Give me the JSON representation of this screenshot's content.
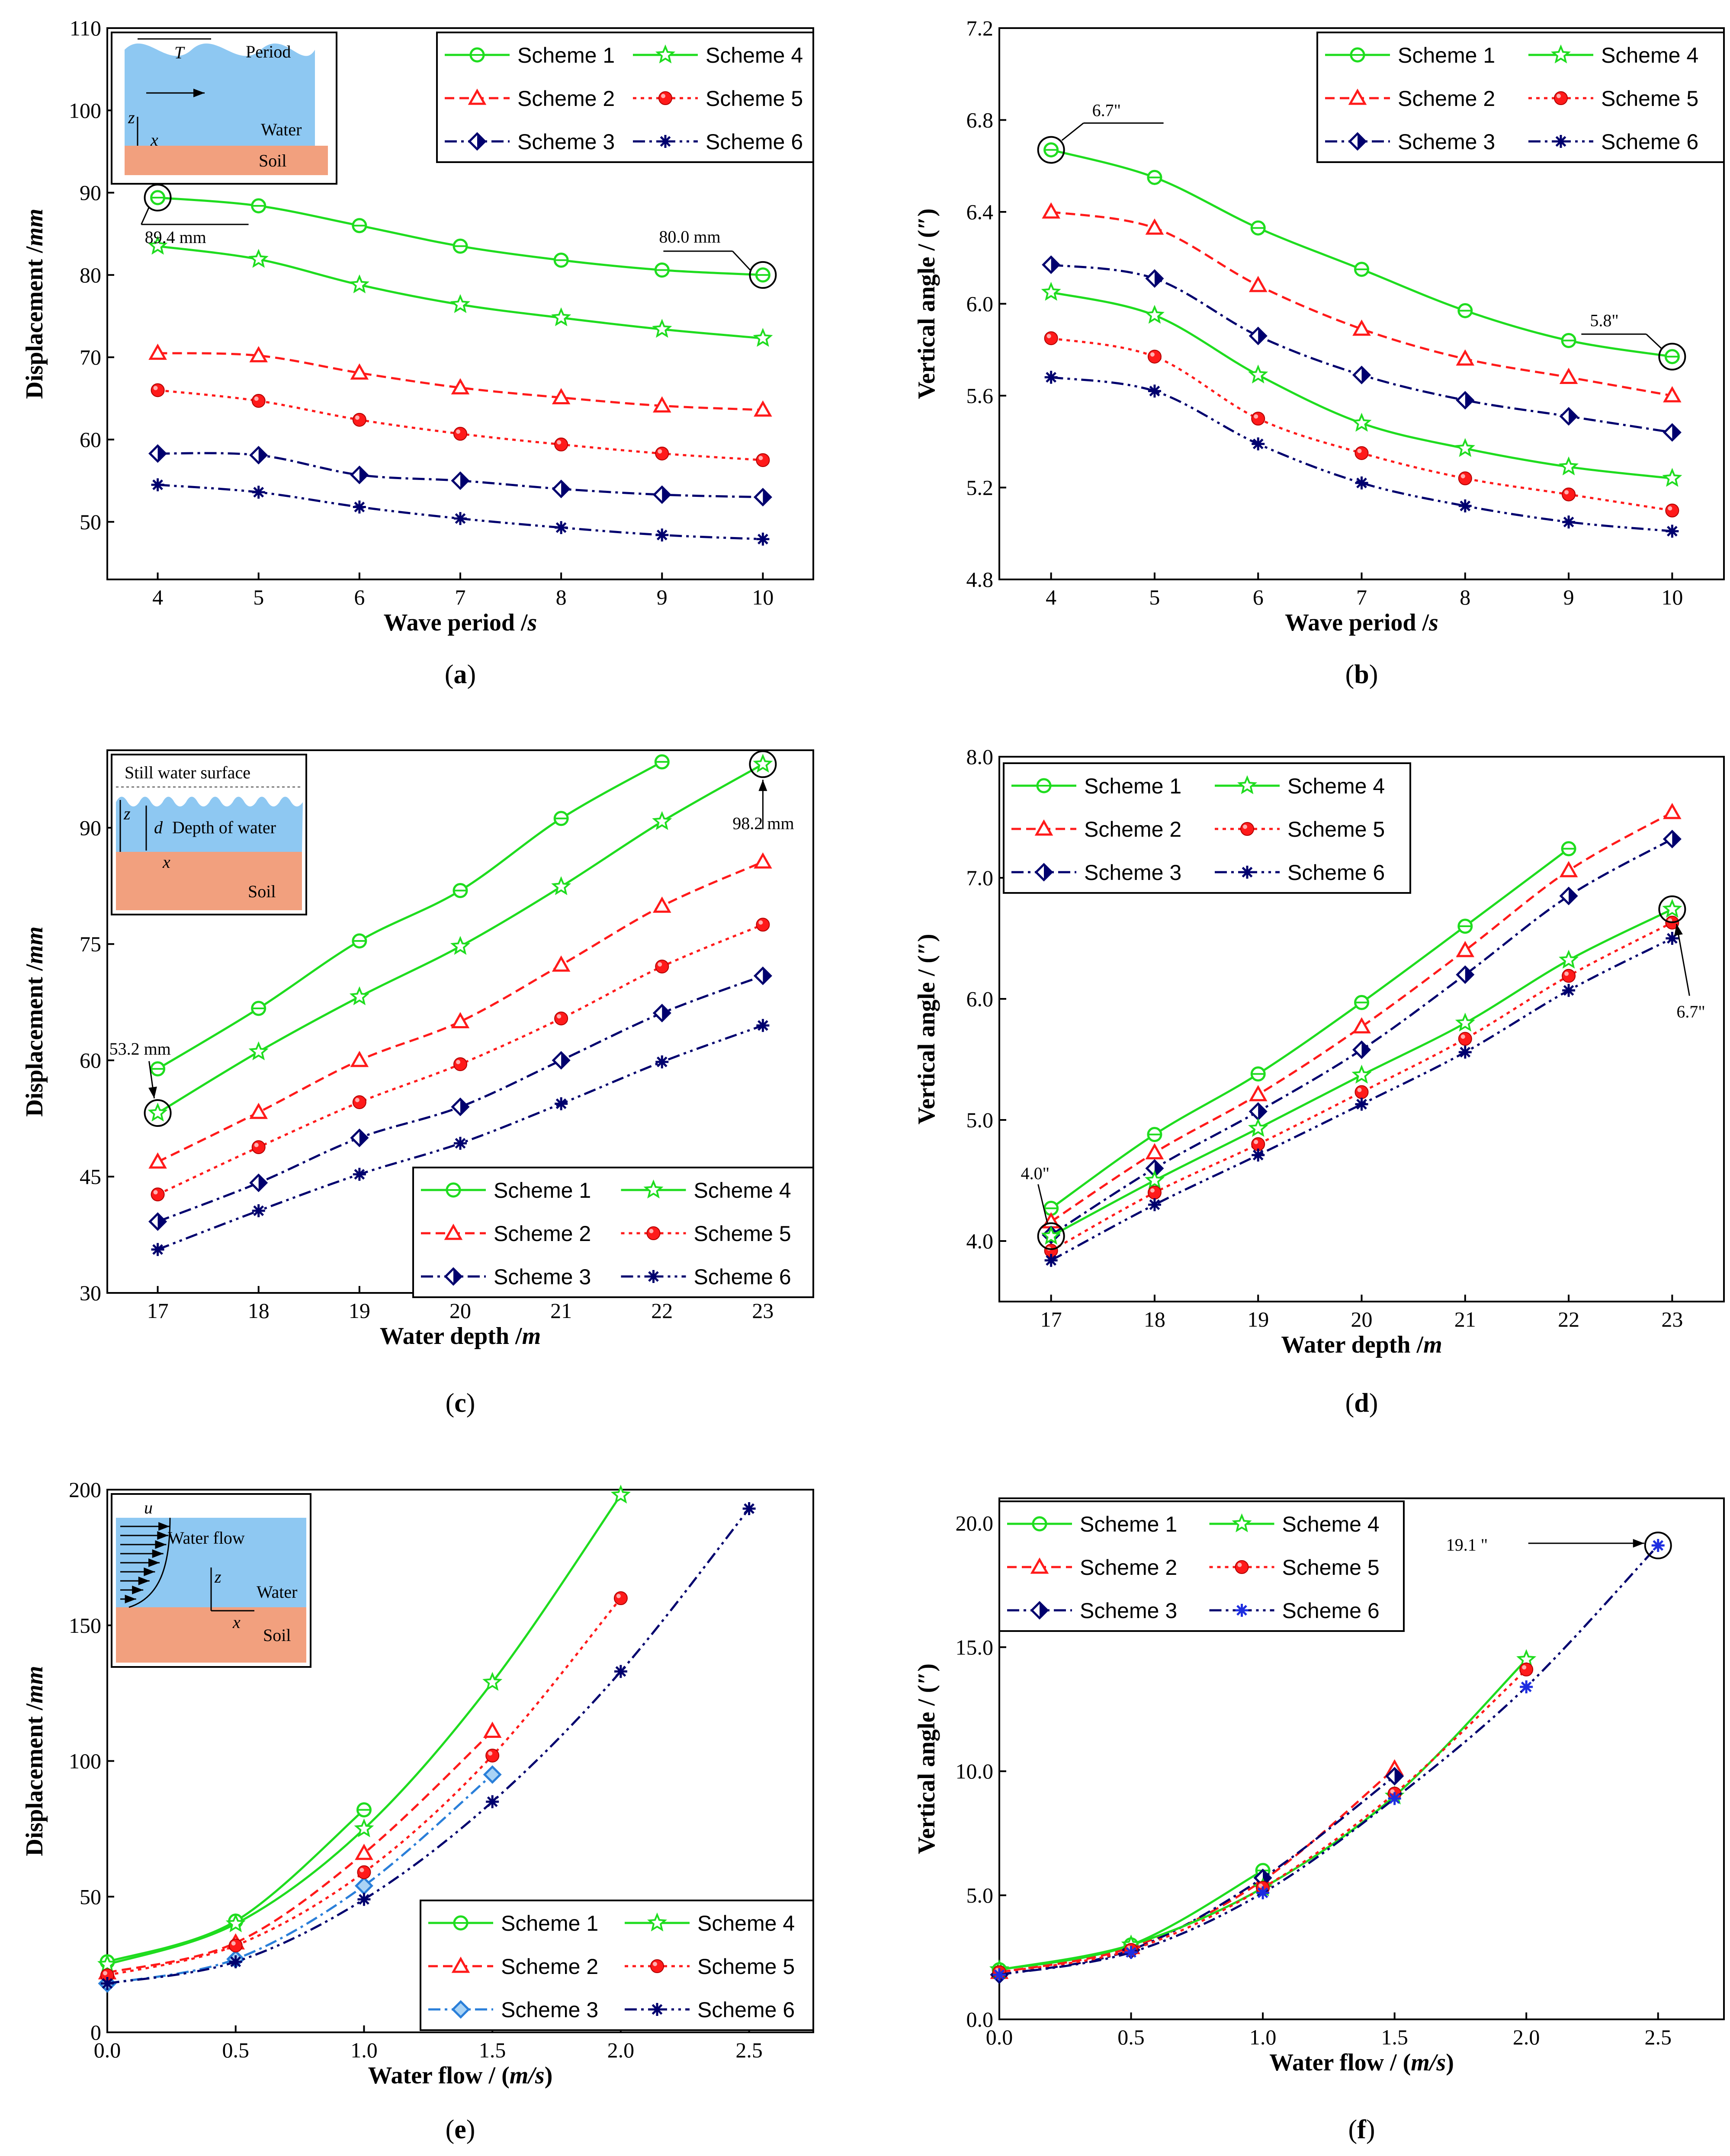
{
  "figure": {
    "colors": {
      "scheme1": "#1fdc1f",
      "scheme2": "#ff1a1a",
      "scheme3": "#00006e",
      "scheme6": "#00006e",
      "scheme3_flow": "#2a7fd9",
      "scheme6_flow_marker": "#1e2ee0",
      "water": "#8ec8f2",
      "soil": "#f2a07e"
    }
  },
  "chart_data": [
    {
      "id": "a",
      "panel_label": "(a)",
      "type": "line",
      "xlabel_main": "Wave period /",
      "xlabel_unit": "s",
      "ylabel_main": "Displacement /",
      "ylabel_unit": "mm",
      "x": [
        4,
        5,
        6,
        7,
        8,
        9,
        10
      ],
      "xlim": [
        3.5,
        10.5
      ],
      "ylim": [
        43,
        110
      ],
      "yticks": [
        50,
        60,
        70,
        80,
        90,
        100,
        110
      ],
      "series": [
        {
          "name": "Scheme 1",
          "values": [
            89.4,
            88.4,
            86.0,
            83.5,
            81.8,
            80.6,
            80.0
          ]
        },
        {
          "name": "Scheme 2",
          "values": [
            70.5,
            70.2,
            68.1,
            66.3,
            65.1,
            64.1,
            63.6
          ]
        },
        {
          "name": "Scheme 3",
          "values": [
            58.3,
            58.1,
            55.7,
            55.0,
            54.0,
            53.3,
            53.0
          ]
        },
        {
          "name": "Scheme 4",
          "values": [
            83.5,
            81.9,
            78.8,
            76.4,
            74.8,
            73.4,
            72.3
          ]
        },
        {
          "name": "Scheme 5",
          "values": [
            66.0,
            64.7,
            62.4,
            60.7,
            59.4,
            58.3,
            57.5
          ]
        },
        {
          "name": "Scheme 6",
          "values": [
            54.5,
            53.6,
            51.8,
            50.4,
            49.3,
            48.4,
            47.9
          ]
        }
      ],
      "annotations": [
        "89.4 mm",
        "80.0 mm"
      ],
      "inset": {
        "t": "T",
        "period": "Period",
        "z": "z",
        "x": "x",
        "water": "Water",
        "soil": "Soil"
      }
    },
    {
      "id": "b",
      "panel_label": "(b)",
      "type": "line",
      "xlabel_main": "Wave period /",
      "xlabel_unit": "s",
      "ylabel_main": "Vertical angle / (″)",
      "x": [
        4,
        5,
        6,
        7,
        8,
        9,
        10
      ],
      "xlim": [
        3.5,
        10.5
      ],
      "ylim": [
        4.8,
        7.2
      ],
      "yticks": [
        "4.8",
        "5.2",
        "5.6",
        "6.0",
        "6.4",
        "6.8",
        "7.2"
      ],
      "series": [
        {
          "name": "Scheme 1",
          "values": [
            6.67,
            6.55,
            6.33,
            6.15,
            5.97,
            5.84,
            5.77
          ]
        },
        {
          "name": "Scheme 2",
          "values": [
            6.4,
            6.33,
            6.08,
            5.89,
            5.76,
            5.68,
            5.6
          ]
        },
        {
          "name": "Scheme 3",
          "values": [
            6.17,
            6.11,
            5.86,
            5.69,
            5.58,
            5.51,
            5.44
          ]
        },
        {
          "name": "Scheme 4",
          "values": [
            6.05,
            5.95,
            5.69,
            5.48,
            5.37,
            5.29,
            5.24
          ]
        },
        {
          "name": "Scheme 5",
          "values": [
            5.85,
            5.77,
            5.5,
            5.35,
            5.24,
            5.17,
            5.1
          ]
        },
        {
          "name": "Scheme 6",
          "values": [
            5.68,
            5.62,
            5.39,
            5.22,
            5.12,
            5.05,
            5.01
          ]
        }
      ],
      "annotations": [
        "6.7\"",
        "5.8\""
      ]
    },
    {
      "id": "c",
      "panel_label": "(c)",
      "type": "line",
      "xlabel_main": "Water depth /",
      "xlabel_unit": "m",
      "ylabel_main": "Displacement /",
      "ylabel_unit": "mm",
      "x": [
        17,
        18,
        19,
        20,
        21,
        22,
        23
      ],
      "xlim": [
        16.5,
        23.5
      ],
      "ylim": [
        30,
        100
      ],
      "yticks": [
        30,
        45,
        60,
        75,
        90
      ],
      "series": [
        {
          "name": "Scheme 1",
          "values": [
            58.9,
            66.7,
            75.4,
            81.9,
            91.2,
            98.5,
            null
          ]
        },
        {
          "name": "Scheme 2",
          "values": [
            46.9,
            53.3,
            60.0,
            65.0,
            72.3,
            79.9,
            85.6
          ]
        },
        {
          "name": "Scheme 3",
          "values": [
            39.2,
            44.2,
            50.0,
            54.0,
            60.0,
            66.1,
            70.9
          ]
        },
        {
          "name": "Scheme 4",
          "values": [
            53.2,
            61.1,
            68.2,
            74.7,
            82.4,
            90.8,
            98.2
          ]
        },
        {
          "name": "Scheme 5",
          "values": [
            42.7,
            48.8,
            54.6,
            59.5,
            65.4,
            72.1,
            77.5
          ]
        },
        {
          "name": "Scheme 6",
          "values": [
            35.6,
            40.6,
            45.3,
            49.3,
            54.4,
            59.8,
            64.5
          ]
        }
      ],
      "annotations": [
        "53.2 mm",
        "98.2 mm"
      ],
      "inset": {
        "surface": "Still water surface",
        "z": "z",
        "d": "d",
        "depth": "Depth of water",
        "x": "x",
        "soil": "Soil"
      }
    },
    {
      "id": "d",
      "panel_label": "(d)",
      "type": "line",
      "xlabel_main": "Water depth /",
      "xlabel_unit": "m",
      "ylabel_main": "Vertical angle / (″)",
      "x": [
        17,
        18,
        19,
        20,
        21,
        22,
        23
      ],
      "xlim": [
        16.5,
        23.5
      ],
      "ylim": [
        3.5,
        8.0
      ],
      "yticks": [
        "4.0",
        "5.0",
        "6.0",
        "7.0",
        "8.0"
      ],
      "series": [
        {
          "name": "Scheme 1",
          "values": [
            4.27,
            4.88,
            5.38,
            5.97,
            6.6,
            7.24,
            null
          ]
        },
        {
          "name": "Scheme 2",
          "values": [
            4.16,
            4.73,
            5.21,
            5.77,
            6.4,
            7.06,
            7.54
          ]
        },
        {
          "name": "Scheme 3",
          "values": [
            4.05,
            4.6,
            5.07,
            5.58,
            6.2,
            6.85,
            7.32
          ]
        },
        {
          "name": "Scheme 4",
          "values": [
            4.04,
            4.5,
            4.93,
            5.37,
            5.8,
            6.32,
            6.74
          ]
        },
        {
          "name": "Scheme 5",
          "values": [
            3.92,
            4.4,
            4.8,
            5.23,
            5.67,
            6.19,
            6.63
          ]
        },
        {
          "name": "Scheme 6",
          "values": [
            3.84,
            4.3,
            4.71,
            5.13,
            5.56,
            6.07,
            6.5
          ]
        }
      ],
      "annotations": [
        "4.0\"",
        "6.7\""
      ]
    },
    {
      "id": "e",
      "panel_label": "(e)",
      "type": "line",
      "xlabel_main": "Water flow / (",
      "xlabel_unit": "m/s",
      "xlabel_end": ")",
      "ylabel_main": "Displacement /",
      "ylabel_unit": "mm",
      "x": [
        0.0,
        0.5,
        1.0,
        1.5,
        2.0,
        2.5
      ],
      "xlim": [
        0.0,
        2.75
      ],
      "ylim": [
        0,
        200
      ],
      "xticks": [
        "0.0",
        "0.5",
        "1.0",
        "1.5",
        "2.0",
        "2.5"
      ],
      "yticks": [
        0,
        50,
        100,
        150,
        200
      ],
      "series": [
        {
          "name": "Scheme 1",
          "values": [
            26,
            41,
            82,
            null,
            null,
            null
          ]
        },
        {
          "name": "Scheme 2",
          "values": [
            22,
            33,
            66,
            111,
            null,
            null
          ]
        },
        {
          "name": "Scheme 3",
          "values": [
            18,
            27,
            54,
            95,
            null,
            null
          ]
        },
        {
          "name": "Scheme 4",
          "values": [
            25,
            40,
            75,
            129,
            198,
            null
          ]
        },
        {
          "name": "Scheme 5",
          "values": [
            21,
            32,
            59,
            102,
            160,
            null
          ]
        },
        {
          "name": "Scheme 6",
          "values": [
            18,
            26,
            49,
            85,
            133,
            193
          ]
        }
      ],
      "inset": {
        "u": "u",
        "flow": "Water flow",
        "z": "z",
        "water": "Water",
        "x": "x",
        "soil": "Soil"
      }
    },
    {
      "id": "f",
      "panel_label": "(f)",
      "type": "line",
      "xlabel_main": "Water flow / (",
      "xlabel_unit": "m/s",
      "xlabel_end": ")",
      "ylabel_main": "Vertical angle / (″)",
      "x": [
        0.0,
        0.5,
        1.0,
        1.5,
        2.0,
        2.5
      ],
      "xlim": [
        0.0,
        2.75
      ],
      "ylim": [
        0,
        21
      ],
      "xticks": [
        "0.0",
        "0.5",
        "1.0",
        "1.5",
        "2.0",
        "2.5"
      ],
      "yticks": [
        "0.0",
        "5.0",
        "10.0",
        "15.0",
        "20.0"
      ],
      "series": [
        {
          "name": "Scheme 1",
          "values": [
            2.0,
            3.0,
            6.0,
            null,
            null,
            null
          ]
        },
        {
          "name": "Scheme 2",
          "values": [
            1.9,
            2.9,
            5.6,
            10.1,
            null,
            null
          ]
        },
        {
          "name": "Scheme 3",
          "values": [
            1.8,
            2.8,
            5.7,
            9.8,
            null,
            null
          ]
        },
        {
          "name": "Scheme 4",
          "values": [
            2.0,
            3.0,
            5.3,
            9.0,
            14.5,
            null
          ]
        },
        {
          "name": "Scheme 5",
          "values": [
            1.9,
            2.8,
            5.3,
            9.1,
            14.1,
            null
          ]
        },
        {
          "name": "Scheme 6",
          "values": [
            1.8,
            2.7,
            5.1,
            8.9,
            13.4,
            19.1
          ]
        }
      ],
      "annotations": [
        "19.1 \""
      ]
    }
  ]
}
